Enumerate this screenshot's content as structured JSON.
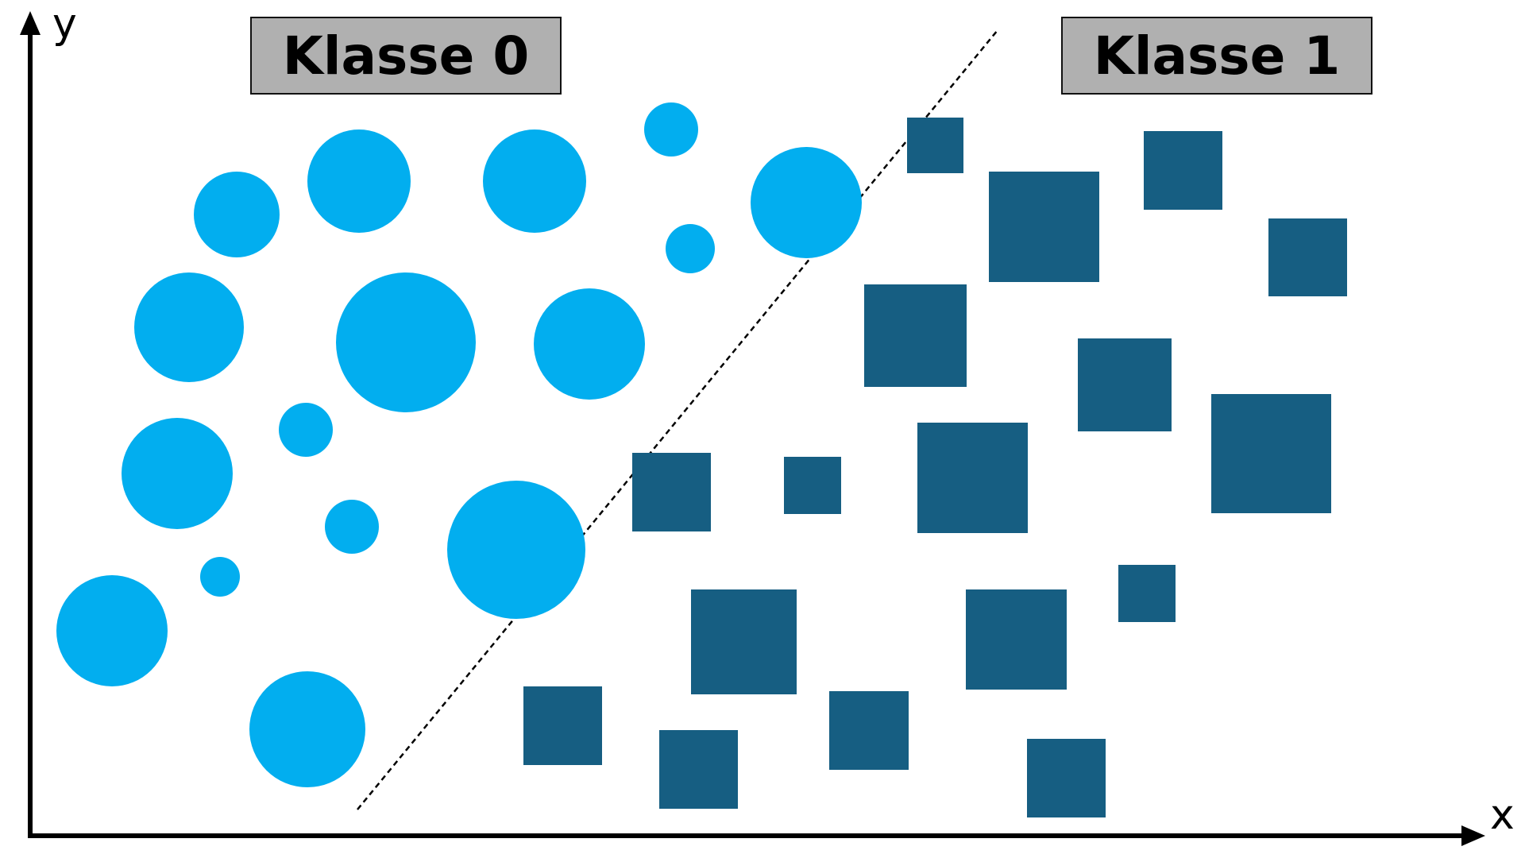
{
  "labels": {
    "class_0": "Klasse 0",
    "class_1": "Klasse 1"
  },
  "axes": {
    "x_label": "x",
    "y_label": "y"
  },
  "colors": {
    "class_0": "#02AEEF",
    "class_1": "#165E82",
    "axis": "#000000",
    "boundary": "#000000",
    "label_bg": "#B0B0B0"
  },
  "legend": {
    "class_0_shape": "circle",
    "class_1_shape": "square"
  },
  "decision_boundary": {
    "style": "dashed"
  }
}
